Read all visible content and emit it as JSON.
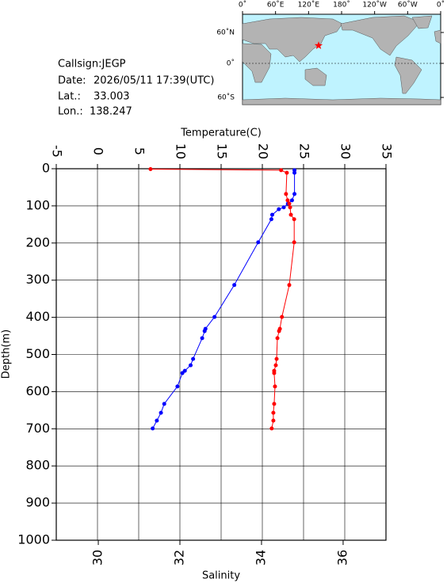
{
  "info": {
    "callsign": "Callsign:JEGP",
    "date_label": "Date:",
    "date": "2026/05/11 17:39(UTC)",
    "lat_label": "Lat.:",
    "lat": 33.003,
    "lon_label": "Lon.:",
    "lon": 138.247
  },
  "map": {
    "lon_labels": [
      "0˚",
      "60˚E",
      "120˚E",
      "180˚",
      "120˚W",
      "60˚W",
      "0˚"
    ],
    "lat_labels": [
      "60˚N",
      "0˚",
      "60˚S"
    ]
  },
  "chart_data": {
    "type": "line",
    "ylabel": "Depth(m)",
    "ylim": [
      0,
      1000
    ],
    "yticks": [
      0,
      100,
      200,
      300,
      400,
      500,
      600,
      700,
      800,
      900,
      1000
    ],
    "y_inverted": true,
    "xlabel": "Salinity",
    "xlim": [
      28.97,
      37.05
    ],
    "xticks": [
      30,
      32,
      34,
      36
    ],
    "x2label": "Temperature(C)",
    "x2lim": [
      -5,
      35
    ],
    "x2ticks": [
      -5,
      0,
      5,
      10,
      15,
      20,
      25,
      30,
      35
    ],
    "grid": true,
    "series": [
      {
        "color": "#0000ff",
        "axis": "x2",
        "depth": [
          4,
          11,
          68,
          85,
          94,
          104,
          109,
          124,
          136,
          198,
          313,
          399,
          431,
          437,
          456,
          512,
          529,
          544,
          550,
          586,
          633,
          657,
          678,
          699
        ],
        "values": [
          23.9,
          23.9,
          23.9,
          23.6,
          23.1,
          22.6,
          22.0,
          21.2,
          21.1,
          19.5,
          16.6,
          14.2,
          13.1,
          13.0,
          12.7,
          11.6,
          11.3,
          10.6,
          10.3,
          9.7,
          8.1,
          7.7,
          7.2,
          6.7
        ]
      },
      {
        "color": "#ff0000",
        "axis": "x",
        "depth": [
          1,
          4,
          11,
          68,
          85,
          94,
          104,
          124,
          136,
          198,
          313,
          399,
          431,
          437,
          456,
          512,
          529,
          544,
          550,
          586,
          633,
          657,
          678,
          699
        ],
        "values": [
          31.28,
          34.48,
          34.62,
          34.6,
          34.64,
          34.68,
          34.7,
          34.72,
          34.8,
          34.8,
          34.68,
          34.5,
          34.45,
          34.43,
          34.39,
          34.37,
          34.35,
          34.31,
          34.31,
          34.33,
          34.31,
          34.29,
          34.29,
          34.25
        ]
      }
    ]
  }
}
